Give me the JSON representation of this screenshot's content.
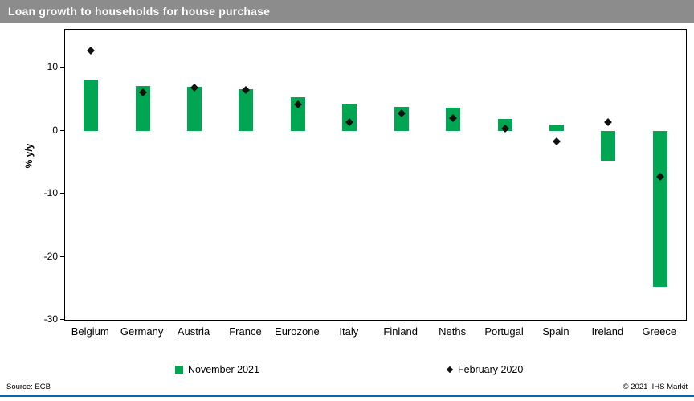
{
  "header": {
    "title": "Loan growth to households for house purchase"
  },
  "chart_data": {
    "type": "bar",
    "title": "Loan growth to households for house purchase",
    "xlabel": "",
    "ylabel": "% y/y",
    "ylim": [
      -30,
      16
    ],
    "yticks": [
      10,
      0,
      -10,
      -20,
      -30
    ],
    "grid": false,
    "legend_position": "bottom",
    "categories": [
      "Belgium",
      "Germany",
      "Austria",
      "France",
      "Eurozone",
      "Italy",
      "Finland",
      "Neths",
      "Portugal",
      "Spain",
      "Ireland",
      "Greece"
    ],
    "series": [
      {
        "name": "November 2021",
        "type": "bar",
        "color": "#00a651",
        "values": [
          8.1,
          7.1,
          6.9,
          6.6,
          5.3,
          4.3,
          3.8,
          3.6,
          1.8,
          1.0,
          -4.8,
          -24.8
        ]
      },
      {
        "name": "February 2020",
        "type": "scatter",
        "marker": "diamond",
        "color": "#111111",
        "values": [
          12.7,
          6.1,
          6.8,
          6.5,
          4.2,
          1.3,
          2.7,
          2.0,
          0.3,
          -1.7,
          1.3,
          -7.3
        ]
      }
    ]
  },
  "footer": {
    "source": "Source: ECB",
    "copyright": "© 2021  IHS Markit"
  },
  "colors": {
    "bar_green": "#00a651",
    "header_gray": "#8c8c8c",
    "accent_blue": "#0069b4",
    "marker_black": "#111111"
  }
}
